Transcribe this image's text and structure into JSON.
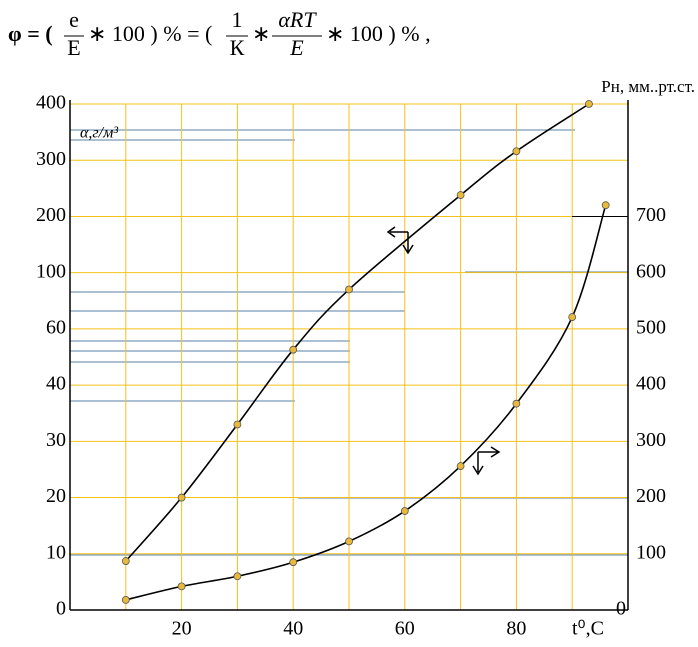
{
  "formula": {
    "t1": "φ = (",
    "n1": "e",
    "d1": "E",
    "t2": "∗ 100 ) % = (",
    "n2": "1",
    "d2": "К",
    "t3": "∗",
    "n3": "αRT",
    "d3": "E",
    "t4": "∗ 100 ) % ,"
  },
  "chart_data": {
    "type": "line",
    "y_label": "α,г/м³",
    "y2_label": "Pн, мм..рт.ст.",
    "x_label": "t⁰,С",
    "xlim": [
      0,
      100
    ],
    "xticks": [
      20,
      40,
      60,
      80
    ],
    "x_minor_ticks": [
      10,
      30,
      50,
      70,
      90
    ],
    "ylim": [
      0,
      400
    ],
    "y_scale": "tick-spaced",
    "yticks": [
      0,
      10,
      20,
      30,
      40,
      60,
      100,
      200,
      300,
      400
    ],
    "y2lim": [
      0,
      900
    ],
    "y2ticks": [
      0,
      100,
      200,
      300,
      400,
      500,
      600,
      700
    ],
    "grid": true,
    "grid_color": "#f2c21b",
    "series": [
      {
        "x": [
          10,
          20,
          30,
          40,
          50,
          70,
          80,
          93
        ],
        "values": [
          8.7,
          20,
          33,
          52.6,
          88,
          238,
          316,
          400
        ],
        "color": "#000000",
        "marker_color": "#e8b93a"
      },
      {
        "x": [
          10,
          20,
          30,
          40,
          50,
          60,
          70,
          80,
          90,
          96
        ],
        "values": [
          18,
          42,
          60,
          85,
          122,
          176,
          256,
          367,
          521,
          720
        ],
        "color": "#000000",
        "marker_color": "#e8b93a",
        "axis": "y2"
      }
    ]
  }
}
